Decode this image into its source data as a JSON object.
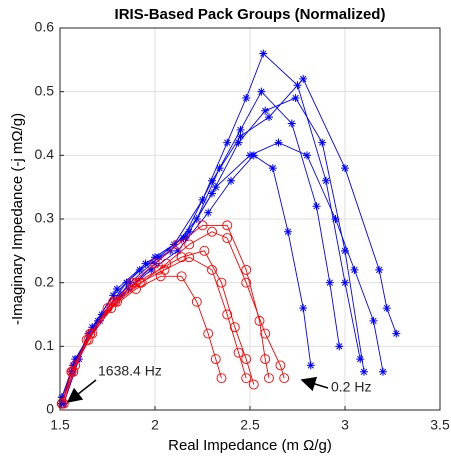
{
  "chart_data": {
    "type": "line",
    "title": "IRIS-Based Pack Groups (Normalized)",
    "x_label": "Real Impedance (m Ω/g)",
    "y_label": "-Imaginary Impedance (-j mΩ/g)",
    "annotations": [
      "1638.4 Hz",
      "0.2 Hz"
    ],
    "xlim": [
      1.5,
      3.5
    ],
    "xticks": [
      1.5,
      2,
      2.5,
      3,
      3.5
    ],
    "ylim": [
      0,
      0.6
    ],
    "yticks": [
      0,
      0.1,
      0.2,
      0.3,
      0.4,
      0.5,
      0.6
    ],
    "grid": true,
    "series": [
      {
        "color": "#0000ff",
        "marker": "star",
        "x": [
          1.51,
          1.56,
          1.65,
          1.78,
          1.92,
          2.08,
          2.22,
          2.34,
          2.45,
          2.56,
          2.72,
          2.85,
          2.92,
          2.97
        ],
        "y": [
          0.01,
          0.06,
          0.12,
          0.18,
          0.22,
          0.25,
          0.3,
          0.38,
          0.44,
          0.5,
          0.45,
          0.32,
          0.2,
          0.1
        ]
      },
      {
        "color": "#0000ff",
        "marker": "star",
        "x": [
          1.51,
          1.57,
          1.67,
          1.8,
          1.95,
          2.1,
          2.25,
          2.38,
          2.48,
          2.57,
          2.75,
          2.9,
          3.0,
          3.08
        ],
        "y": [
          0.01,
          0.07,
          0.13,
          0.19,
          0.23,
          0.26,
          0.33,
          0.42,
          0.49,
          0.56,
          0.51,
          0.36,
          0.2,
          0.08
        ]
      },
      {
        "color": "#0000ff",
        "marker": "star",
        "x": [
          1.51,
          1.58,
          1.7,
          1.85,
          2.0,
          2.15,
          2.3,
          2.45,
          2.6,
          2.78,
          3.0,
          3.18,
          3.22,
          3.27
        ],
        "y": [
          0.02,
          0.08,
          0.14,
          0.2,
          0.24,
          0.27,
          0.36,
          0.43,
          0.46,
          0.52,
          0.38,
          0.22,
          0.16,
          0.12
        ]
      },
      {
        "color": "#0000ff",
        "marker": "star",
        "x": [
          1.52,
          1.6,
          1.72,
          1.87,
          2.02,
          2.18,
          2.32,
          2.5,
          2.65,
          2.8,
          2.95,
          3.05,
          3.15,
          3.2
        ],
        "y": [
          0.01,
          0.08,
          0.15,
          0.2,
          0.24,
          0.28,
          0.35,
          0.4,
          0.42,
          0.4,
          0.3,
          0.22,
          0.14,
          0.06
        ]
      },
      {
        "color": "#0000ff",
        "marker": "star",
        "x": [
          1.51,
          1.57,
          1.68,
          1.82,
          1.98,
          2.12,
          2.28,
          2.4,
          2.52,
          2.62,
          2.7,
          2.78,
          2.82
        ],
        "y": [
          0.01,
          0.07,
          0.13,
          0.18,
          0.22,
          0.25,
          0.31,
          0.36,
          0.4,
          0.38,
          0.28,
          0.16,
          0.07
        ]
      },
      {
        "color": "#0000ff",
        "marker": "star",
        "x": [
          1.51,
          1.59,
          1.71,
          1.86,
          2.0,
          2.16,
          2.3,
          2.44,
          2.58,
          2.74,
          2.88,
          3.0,
          3.1
        ],
        "y": [
          0.02,
          0.08,
          0.14,
          0.19,
          0.23,
          0.27,
          0.34,
          0.42,
          0.47,
          0.49,
          0.42,
          0.25,
          0.06
        ]
      },
      {
        "color": "#ff0000",
        "marker": "circle",
        "x": [
          1.51,
          1.56,
          1.64,
          1.75,
          1.88,
          2.0,
          2.12,
          2.25,
          2.38,
          2.48,
          2.55,
          2.58,
          2.6
        ],
        "y": [
          0.01,
          0.06,
          0.11,
          0.16,
          0.2,
          0.23,
          0.26,
          0.29,
          0.29,
          0.22,
          0.14,
          0.08,
          0.05
        ]
      },
      {
        "color": "#ff0000",
        "marker": "circle",
        "x": [
          1.51,
          1.57,
          1.66,
          1.78,
          1.9,
          2.02,
          2.14,
          2.26,
          2.35,
          2.42,
          2.48,
          2.52
        ],
        "y": [
          0.01,
          0.06,
          0.12,
          0.17,
          0.2,
          0.22,
          0.24,
          0.25,
          0.2,
          0.13,
          0.08,
          0.04
        ]
      },
      {
        "color": "#ff0000",
        "marker": "circle",
        "x": [
          1.52,
          1.58,
          1.67,
          1.8,
          1.93,
          2.06,
          2.18,
          2.3,
          2.38,
          2.48,
          2.58,
          2.66,
          2.68
        ],
        "y": [
          0.01,
          0.07,
          0.12,
          0.17,
          0.2,
          0.23,
          0.26,
          0.28,
          0.27,
          0.2,
          0.12,
          0.07,
          0.05
        ]
      },
      {
        "color": "#ff0000",
        "marker": "circle",
        "x": [
          1.51,
          1.56,
          1.65,
          1.77,
          1.9,
          2.03,
          2.14,
          2.22,
          2.28,
          2.32,
          2.35
        ],
        "y": [
          0.01,
          0.06,
          0.11,
          0.16,
          0.19,
          0.21,
          0.21,
          0.17,
          0.12,
          0.08,
          0.05
        ]
      },
      {
        "color": "#ff0000",
        "marker": "circle",
        "x": [
          1.51,
          1.57,
          1.66,
          1.79,
          1.92,
          2.05,
          2.18,
          2.3,
          2.38,
          2.44,
          2.48
        ],
        "y": [
          0.01,
          0.06,
          0.12,
          0.17,
          0.2,
          0.22,
          0.24,
          0.22,
          0.15,
          0.09,
          0.05
        ]
      }
    ]
  }
}
